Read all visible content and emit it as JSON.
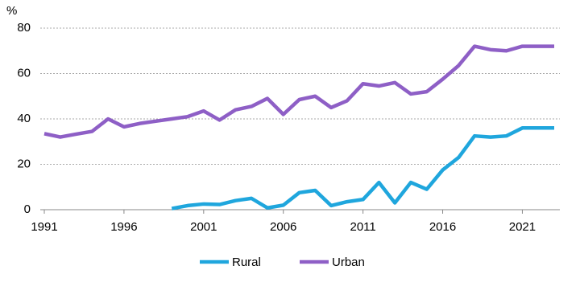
{
  "chart_data": {
    "type": "line",
    "y_label": "%",
    "x": [
      1991,
      1992,
      1993,
      1994,
      1995,
      1996,
      1997,
      1998,
      1999,
      2000,
      2001,
      2002,
      2003,
      2004,
      2005,
      2006,
      2007,
      2008,
      2009,
      2010,
      2011,
      2012,
      2013,
      2014,
      2015,
      2016,
      2017,
      2018,
      2019,
      2020,
      2021,
      2022,
      2023
    ],
    "series": [
      {
        "name": "Rural",
        "color": "#1fa6dd",
        "values": [
          null,
          null,
          null,
          null,
          null,
          null,
          null,
          null,
          0.5,
          1.8,
          2.5,
          2.3,
          4,
          5,
          0.8,
          2,
          7.5,
          8.5,
          1.8,
          3.5,
          4.5,
          12,
          3,
          12,
          9,
          17.5,
          23,
          32.5,
          32,
          32.5,
          36,
          36,
          36
        ]
      },
      {
        "name": "Urban",
        "color": "#8e5fc6",
        "values": [
          33.5,
          32,
          33.3,
          34.5,
          40,
          36.5,
          38,
          39,
          40,
          41,
          43.5,
          39.5,
          44,
          45.5,
          49,
          42,
          48.5,
          50,
          45,
          48,
          55.5,
          54.5,
          56,
          51,
          52,
          57.5,
          63.5,
          72,
          70.5,
          70,
          72,
          72,
          72
        ]
      }
    ],
    "xlim": [
      1991,
      2023
    ],
    "xticks": [
      1991,
      1996,
      2001,
      2006,
      2011,
      2016,
      2021
    ],
    "ylim": [
      0,
      80
    ],
    "yticks": [
      0,
      20,
      40,
      60,
      80
    ],
    "grid": true,
    "legend": "bottom"
  }
}
